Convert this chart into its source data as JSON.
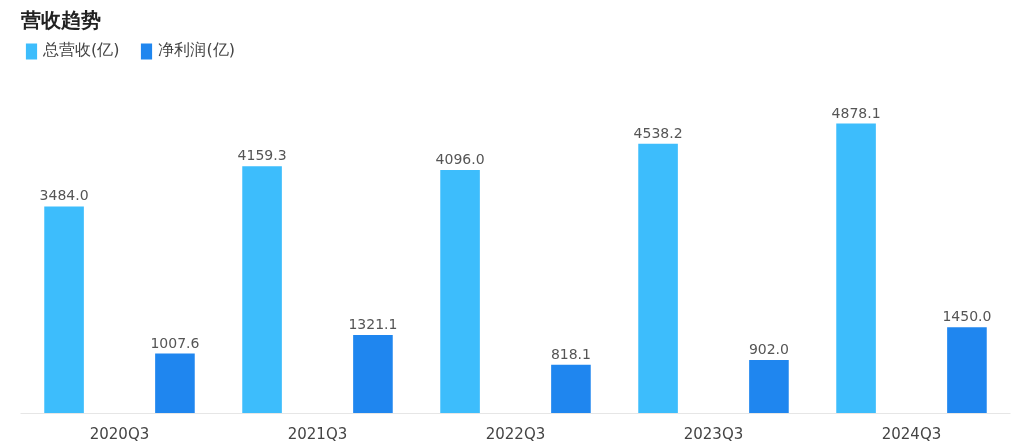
{
  "chart_data": {
    "type": "bar",
    "title": "营收趋势",
    "categories": [
      "2020Q3",
      "2021Q3",
      "2022Q3",
      "2023Q3",
      "2024Q3"
    ],
    "series": [
      {
        "name": "总营收(亿)",
        "color": "#3dbdfc",
        "values": [
          3484.0,
          4159.3,
          4096.0,
          4538.2,
          4878.1
        ],
        "value_labels": [
          "3484.0",
          "4159.3",
          "4096.0",
          "4538.2",
          "4878.1"
        ]
      },
      {
        "name": "净利润(亿)",
        "color": "#1f86ef",
        "values": [
          1007.6,
          1321.1,
          818.1,
          902.0,
          1450.0
        ],
        "value_labels": [
          "1007.6",
          "1321.1",
          "818.1",
          "902.0",
          "1450.0"
        ]
      }
    ],
    "legend": "top left",
    "grid": false
  }
}
